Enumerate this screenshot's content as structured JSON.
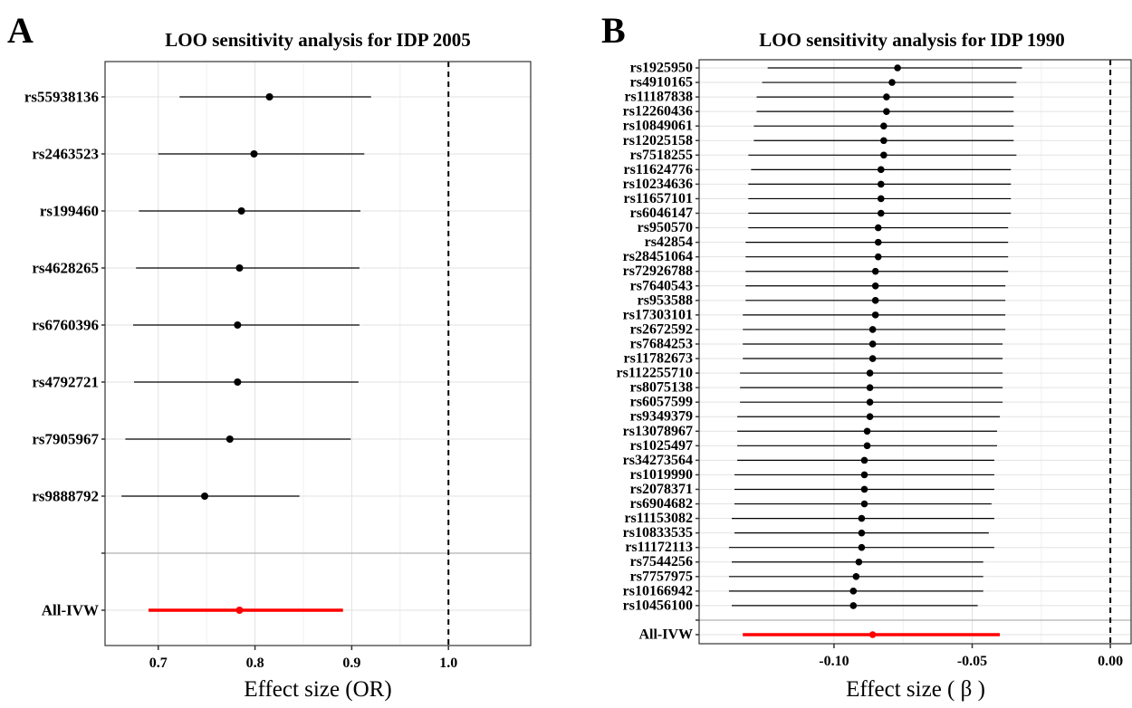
{
  "panels": [
    {
      "letter": "A",
      "title": "LOO sensitivity analysis for IDP 2005",
      "xlabel": "Effect size (OR)",
      "chart_data": {
        "type": "forest",
        "x_ticks": [
          0.7,
          0.8,
          0.9,
          1.0
        ],
        "x_tick_labels": [
          "0.7",
          "0.8",
          "0.9",
          "1.0"
        ],
        "xlim": [
          0.645,
          1.085
        ],
        "reference_line": 1.0,
        "rows": [
          {
            "label": "rs55938136",
            "estimate": 0.815,
            "lower": 0.722,
            "upper": 0.92
          },
          {
            "label": "rs2463523",
            "estimate": 0.799,
            "lower": 0.7,
            "upper": 0.913
          },
          {
            "label": "rs199460",
            "estimate": 0.786,
            "lower": 0.68,
            "upper": 0.909
          },
          {
            "label": "rs4628265",
            "estimate": 0.784,
            "lower": 0.677,
            "upper": 0.908
          },
          {
            "label": "rs6760396",
            "estimate": 0.782,
            "lower": 0.674,
            "upper": 0.908
          },
          {
            "label": "rs4792721",
            "estimate": 0.782,
            "lower": 0.675,
            "upper": 0.907
          },
          {
            "label": "rs7905967",
            "estimate": 0.774,
            "lower": 0.666,
            "upper": 0.899
          },
          {
            "label": "rs9888792",
            "estimate": 0.748,
            "lower": 0.662,
            "upper": 0.846
          },
          {
            "label": "",
            "separator": true
          },
          {
            "label": "All-IVW",
            "estimate": 0.784,
            "lower": 0.69,
            "upper": 0.891,
            "highlight": true
          }
        ]
      }
    },
    {
      "letter": "B",
      "title": "LOO sensitivity analysis for IDP 1990",
      "xlabel": "Effect size ( β )",
      "chart_data": {
        "type": "forest",
        "x_ticks": [
          -0.1,
          -0.05,
          0.0
        ],
        "x_tick_labels": [
          "-0.10",
          "-0.05",
          "0.00"
        ],
        "xlim": [
          -0.1488,
          0.0075
        ],
        "reference_line": 0.0,
        "rows": [
          {
            "label": "rs1925950",
            "estimate": -0.077,
            "lower": -0.124,
            "upper": -0.032
          },
          {
            "label": "rs4910165",
            "estimate": -0.079,
            "lower": -0.126,
            "upper": -0.034
          },
          {
            "label": "rs11187838",
            "estimate": -0.081,
            "lower": -0.128,
            "upper": -0.035
          },
          {
            "label": "rs12260436",
            "estimate": -0.081,
            "lower": -0.128,
            "upper": -0.035
          },
          {
            "label": "rs10849061",
            "estimate": -0.082,
            "lower": -0.129,
            "upper": -0.035
          },
          {
            "label": "rs12025158",
            "estimate": -0.082,
            "lower": -0.129,
            "upper": -0.035
          },
          {
            "label": "rs7518255",
            "estimate": -0.082,
            "lower": -0.131,
            "upper": -0.034
          },
          {
            "label": "rs11624776",
            "estimate": -0.083,
            "lower": -0.13,
            "upper": -0.036
          },
          {
            "label": "rs10234636",
            "estimate": -0.083,
            "lower": -0.131,
            "upper": -0.036
          },
          {
            "label": "rs11657101",
            "estimate": -0.083,
            "lower": -0.131,
            "upper": -0.036
          },
          {
            "label": "rs6046147",
            "estimate": -0.083,
            "lower": -0.131,
            "upper": -0.036
          },
          {
            "label": "rs950570",
            "estimate": -0.084,
            "lower": -0.131,
            "upper": -0.037
          },
          {
            "label": "rs42854",
            "estimate": -0.084,
            "lower": -0.132,
            "upper": -0.037
          },
          {
            "label": "rs28451064",
            "estimate": -0.084,
            "lower": -0.132,
            "upper": -0.037
          },
          {
            "label": "rs72926788",
            "estimate": -0.085,
            "lower": -0.132,
            "upper": -0.037
          },
          {
            "label": "rs7640543",
            "estimate": -0.085,
            "lower": -0.132,
            "upper": -0.038
          },
          {
            "label": "rs953588",
            "estimate": -0.085,
            "lower": -0.132,
            "upper": -0.038
          },
          {
            "label": "rs17303101",
            "estimate": -0.085,
            "lower": -0.133,
            "upper": -0.038
          },
          {
            "label": "rs2672592",
            "estimate": -0.086,
            "lower": -0.133,
            "upper": -0.038
          },
          {
            "label": "rs7684253",
            "estimate": -0.086,
            "lower": -0.133,
            "upper": -0.039
          },
          {
            "label": "rs11782673",
            "estimate": -0.086,
            "lower": -0.133,
            "upper": -0.039
          },
          {
            "label": "rs112255710",
            "estimate": -0.087,
            "lower": -0.134,
            "upper": -0.039
          },
          {
            "label": "rs8075138",
            "estimate": -0.087,
            "lower": -0.134,
            "upper": -0.039
          },
          {
            "label": "rs6057599",
            "estimate": -0.087,
            "lower": -0.134,
            "upper": -0.039
          },
          {
            "label": "rs9349379",
            "estimate": -0.087,
            "lower": -0.135,
            "upper": -0.04
          },
          {
            "label": "rs13078967",
            "estimate": -0.088,
            "lower": -0.135,
            "upper": -0.041
          },
          {
            "label": "rs1025497",
            "estimate": -0.088,
            "lower": -0.135,
            "upper": -0.041
          },
          {
            "label": "rs34273564",
            "estimate": -0.089,
            "lower": -0.135,
            "upper": -0.042
          },
          {
            "label": "rs1019990",
            "estimate": -0.089,
            "lower": -0.136,
            "upper": -0.042
          },
          {
            "label": "rs2078371",
            "estimate": -0.089,
            "lower": -0.136,
            "upper": -0.042
          },
          {
            "label": "rs6904682",
            "estimate": -0.089,
            "lower": -0.136,
            "upper": -0.043
          },
          {
            "label": "rs11153082",
            "estimate": -0.09,
            "lower": -0.137,
            "upper": -0.042
          },
          {
            "label": "rs10833535",
            "estimate": -0.09,
            "lower": -0.136,
            "upper": -0.044
          },
          {
            "label": "rs11172113",
            "estimate": -0.09,
            "lower": -0.138,
            "upper": -0.042
          },
          {
            "label": "rs7544256",
            "estimate": -0.091,
            "lower": -0.137,
            "upper": -0.046
          },
          {
            "label": "rs7757975",
            "estimate": -0.092,
            "lower": -0.138,
            "upper": -0.046
          },
          {
            "label": "rs10166942",
            "estimate": -0.093,
            "lower": -0.138,
            "upper": -0.046
          },
          {
            "label": "rs10456100",
            "estimate": -0.093,
            "lower": -0.137,
            "upper": -0.048
          },
          {
            "label": "",
            "separator": true
          },
          {
            "label": "All-IVW",
            "estimate": -0.086,
            "lower": -0.133,
            "upper": -0.04,
            "highlight": true
          }
        ]
      }
    }
  ],
  "colors": {
    "point": "#000000",
    "ci": "#000000",
    "highlight": "#ff0000",
    "grid_major": "#e2e2e2",
    "grid_minor": "#f0f0f0",
    "separator": "#bdbdbd",
    "border": "#333333"
  }
}
